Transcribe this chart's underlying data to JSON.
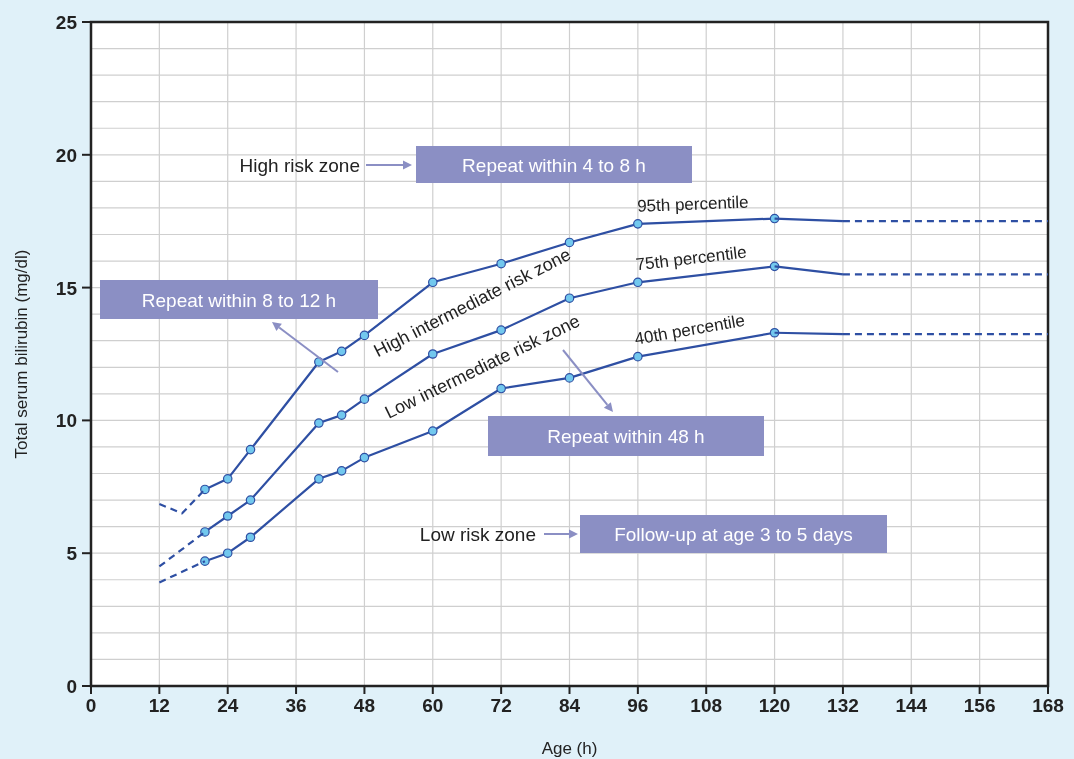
{
  "chart_data": {
    "type": "line",
    "xlabel": "Age (h)",
    "ylabel": "Total serum bilirubin (mg/dl)",
    "xlim": [
      0,
      168
    ],
    "ylim": [
      0,
      25
    ],
    "xticks": [
      0,
      12,
      24,
      36,
      48,
      60,
      72,
      84,
      96,
      108,
      120,
      132,
      144,
      156,
      168
    ],
    "yticks": [
      0,
      {
        "value": 1,
        "label": null
      },
      {
        "value": 2,
        "label": null
      },
      {
        "value": 3,
        "label": null
      },
      {
        "value": 4,
        "label": null
      },
      5,
      {
        "value": 6,
        "label": null
      },
      {
        "value": 7,
        "label": null
      },
      {
        "value": 8,
        "label": null
      },
      {
        "value": 9,
        "label": null
      },
      10,
      {
        "value": 11,
        "label": null
      },
      {
        "value": 12,
        "label": null
      },
      {
        "value": 13,
        "label": null
      },
      {
        "value": 14,
        "label": null
      },
      15,
      {
        "value": 16,
        "label": null
      },
      {
        "value": 17,
        "label": null
      },
      {
        "value": 18,
        "label": null
      },
      {
        "value": 19,
        "label": null
      },
      20,
      {
        "value": 21,
        "label": null
      },
      {
        "value": 22,
        "label": null
      },
      {
        "value": 23,
        "label": null
      },
      {
        "value": 24,
        "label": null
      },
      25
    ],
    "grid": true,
    "series": [
      {
        "name": "95th percentile",
        "color": "#2e4fa3",
        "marker": "circle",
        "line_style": "solid",
        "x": [
          20,
          24,
          28,
          40,
          44,
          48,
          60,
          72,
          84,
          96,
          120
        ],
        "values": [
          7.4,
          7.8,
          8.9,
          12.2,
          12.6,
          13.2,
          15.2,
          15.9,
          16.7,
          17.4,
          17.6
        ]
      },
      {
        "color": "#2e4fa3",
        "marker": "none",
        "line_style": "solid",
        "x": [
          120,
          132
        ],
        "values": [
          17.6,
          17.5
        ]
      },
      {
        "color": "#2e4fa3",
        "marker": "none",
        "line_style": "dashed",
        "x": [
          12,
          16,
          20
        ],
        "values": [
          6.85,
          6.5,
          7.4
        ]
      },
      {
        "color": "#2e4fa3",
        "marker": "none",
        "line_style": "dashed",
        "x": [
          132,
          168
        ],
        "values": [
          17.5,
          17.5
        ]
      },
      {
        "name": "75th percentile",
        "color": "#2e4fa3",
        "marker": "circle",
        "line_style": "solid",
        "x": [
          20,
          24,
          28,
          40,
          44,
          48,
          60,
          72,
          84,
          96,
          120
        ],
        "values": [
          5.8,
          6.4,
          7.0,
          9.9,
          10.2,
          10.8,
          12.5,
          13.4,
          14.6,
          15.2,
          15.8
        ]
      },
      {
        "color": "#2e4fa3",
        "marker": "none",
        "line_style": "solid",
        "x": [
          120,
          132
        ],
        "values": [
          15.8,
          15.5
        ]
      },
      {
        "color": "#2e4fa3",
        "marker": "none",
        "line_style": "dashed",
        "x": [
          12,
          20
        ],
        "values": [
          4.5,
          5.8
        ]
      },
      {
        "color": "#2e4fa3",
        "marker": "none",
        "line_style": "dashed",
        "x": [
          132,
          168
        ],
        "values": [
          15.5,
          15.5
        ]
      },
      {
        "name": "40th percentile",
        "color": "#2e4fa3",
        "marker": "circle",
        "line_style": "solid",
        "x": [
          20,
          24,
          28,
          40,
          44,
          48,
          60,
          72,
          84,
          96,
          120
        ],
        "values": [
          4.7,
          5.0,
          5.6,
          7.8,
          8.1,
          8.6,
          9.6,
          11.2,
          11.6,
          12.4,
          13.3
        ]
      },
      {
        "color": "#2e4fa3",
        "marker": "none",
        "line_style": "solid",
        "x": [
          120,
          132
        ],
        "values": [
          13.3,
          13.25
        ]
      },
      {
        "color": "#2e4fa3",
        "marker": "none",
        "line_style": "dashed",
        "x": [
          12,
          20
        ],
        "values": [
          3.9,
          4.7
        ]
      },
      {
        "color": "#2e4fa3",
        "marker": "none",
        "line_style": "dashed",
        "x": [
          132,
          168
        ],
        "values": [
          13.25,
          13.25
        ]
      }
    ],
    "annotations": [
      "High risk zone",
      "Repeat within 4 to 8 h",
      "Repeat within 8 to 12 h",
      "High intermediate risk zone",
      "Low intermediate risk zone",
      "Repeat within 48 h",
      "Low risk zone",
      "Follow-up at age 3 to 5 days"
    ]
  }
}
